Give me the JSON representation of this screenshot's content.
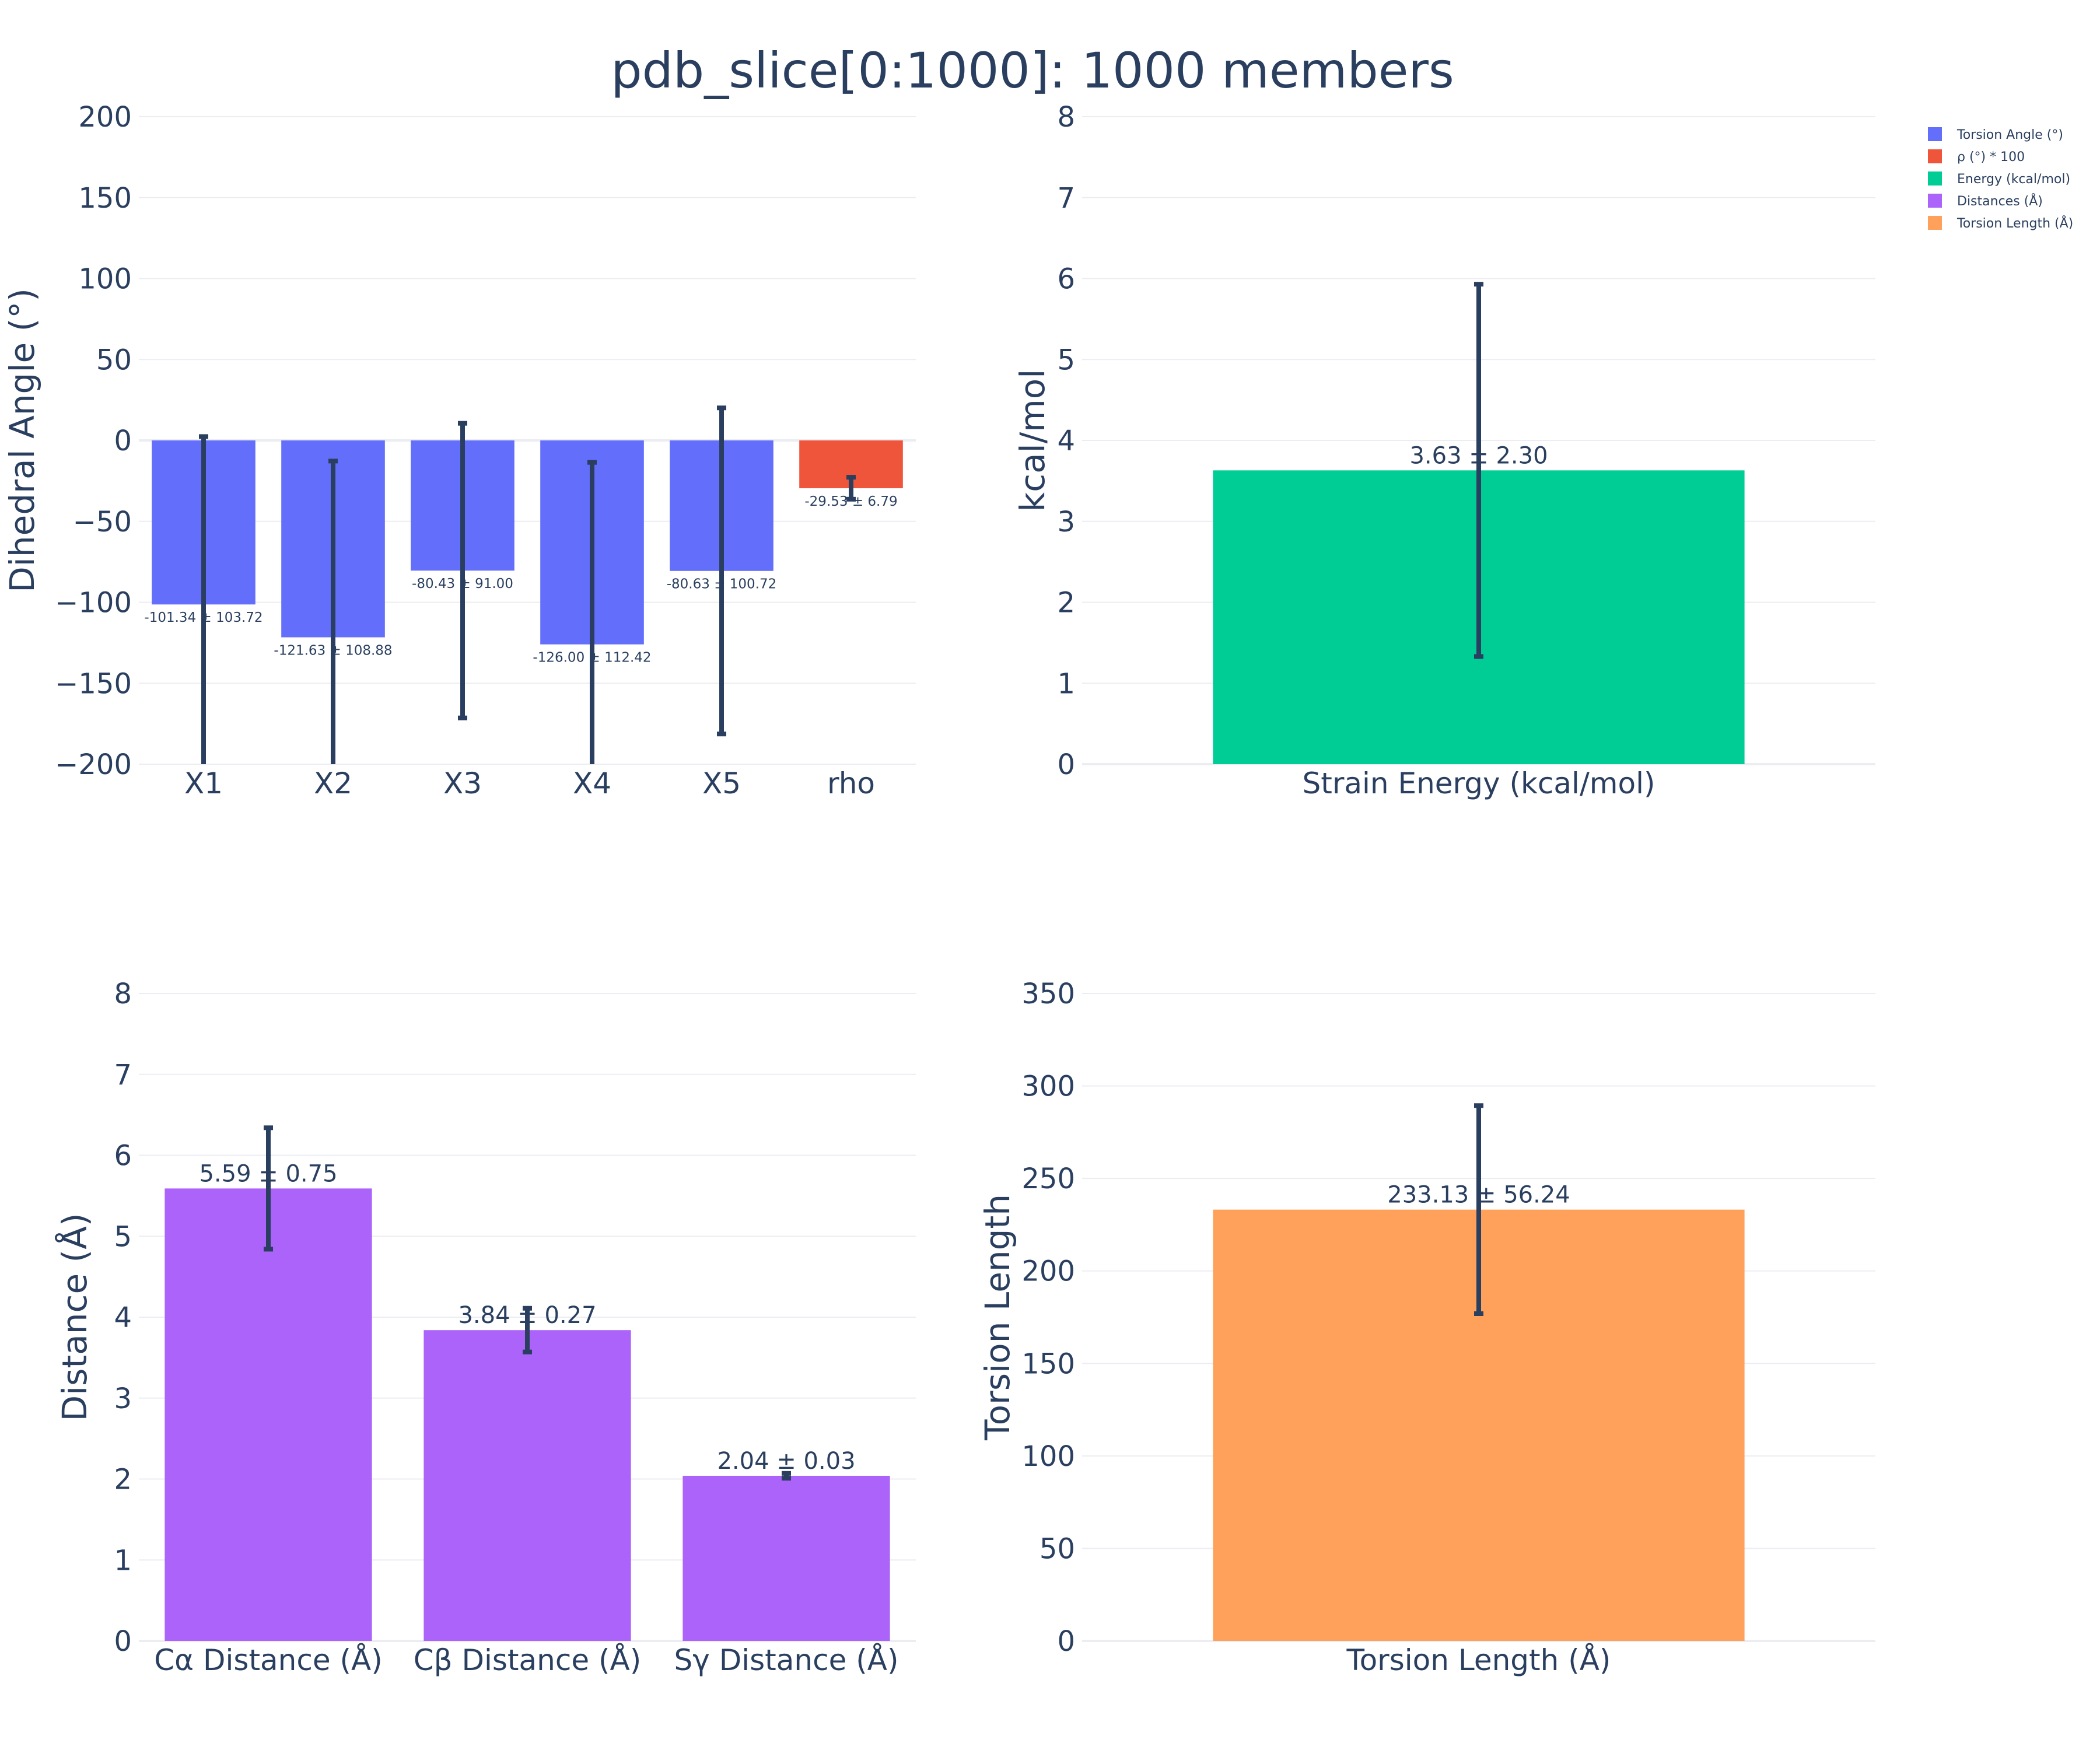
{
  "title": "pdb_slice[0:1000]: 1000 members",
  "legend": [
    {
      "label": "Torsion Angle (°)",
      "color": "#636efa"
    },
    {
      "label": "ρ (°) * 100",
      "color": "#ef553b"
    },
    {
      "label": "Energy (kcal/mol)",
      "color": "#00cc96"
    },
    {
      "label": "Distances (Å)",
      "color": "#ab63fa"
    },
    {
      "label": "Torsion Length (Å)",
      "color": "#ffa15a"
    }
  ],
  "chart_data": [
    {
      "type": "bar",
      "panel": "top-left",
      "ylabel": "Dihedral Angle (°)",
      "ylim": [
        -200,
        200
      ],
      "yticks": [
        -200,
        -150,
        -100,
        -50,
        0,
        50,
        100,
        150,
        200
      ],
      "categories": [
        "X1",
        "X2",
        "X3",
        "X4",
        "X5",
        "rho"
      ],
      "values": [
        -101.34,
        -121.63,
        -80.43,
        -126.0,
        -80.63,
        -29.53
      ],
      "errors": [
        103.72,
        108.88,
        91.0,
        112.42,
        100.72,
        6.79
      ],
      "labels": [
        "-101.34 ± 103.72",
        "-121.63 ± 108.88",
        "-80.43 ± 91.00",
        "-126.00 ± 112.42",
        "-80.63 ± 100.72",
        "-29.53 ± 6.79"
      ],
      "colors": [
        "#636efa",
        "#636efa",
        "#636efa",
        "#636efa",
        "#636efa",
        "#ef553b"
      ],
      "label_size": "small"
    },
    {
      "type": "bar",
      "panel": "top-right",
      "ylabel": "kcal/mol",
      "ylim": [
        0,
        8
      ],
      "yticks": [
        0,
        1,
        2,
        3,
        4,
        5,
        6,
        7,
        8
      ],
      "categories": [
        "Strain Energy (kcal/mol)"
      ],
      "values": [
        3.63
      ],
      "errors": [
        2.3
      ],
      "labels": [
        "3.63 ± 2.30"
      ],
      "colors": [
        "#00cc96"
      ],
      "label_size": "large"
    },
    {
      "type": "bar",
      "panel": "bottom-left",
      "ylabel": "Distance (Å)",
      "ylim": [
        0,
        8
      ],
      "yticks": [
        0,
        1,
        2,
        3,
        4,
        5,
        6,
        7,
        8
      ],
      "categories": [
        "Cα Distance (Å)",
        "Cβ Distance (Å)",
        "Sγ Distance (Å)"
      ],
      "values": [
        5.59,
        3.84,
        2.04
      ],
      "errors": [
        0.75,
        0.27,
        0.03
      ],
      "labels": [
        "5.59 ± 0.75",
        "3.84 ± 0.27",
        "2.04 ± 0.03"
      ],
      "colors": [
        "#ab63fa",
        "#ab63fa",
        "#ab63fa"
      ],
      "label_size": "large"
    },
    {
      "type": "bar",
      "panel": "bottom-right",
      "ylabel": "Torsion Length",
      "ylim": [
        0,
        350
      ],
      "yticks": [
        0,
        50,
        100,
        150,
        200,
        250,
        300,
        350
      ],
      "categories": [
        "Torsion Length (Å)"
      ],
      "values": [
        233.13
      ],
      "errors": [
        56.24
      ],
      "labels": [
        "233.13 ± 56.24"
      ],
      "colors": [
        "#ffa15a"
      ],
      "label_size": "large"
    }
  ]
}
